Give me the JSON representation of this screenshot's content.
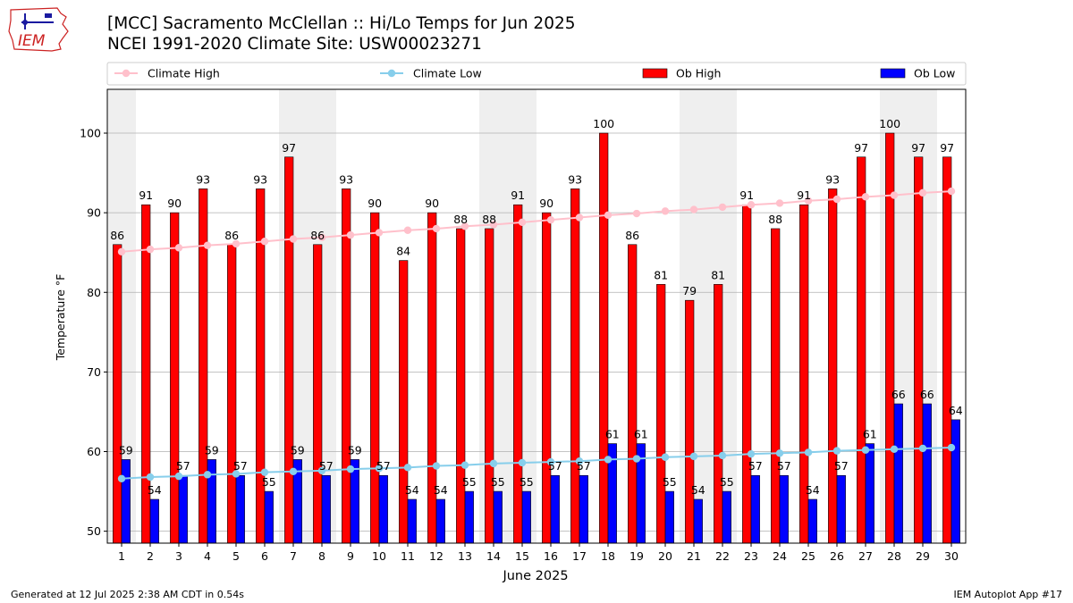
{
  "header": {
    "logo_text": "IEM",
    "title_line1": "[MCC] Sacramento McClellan :: Hi/Lo Temps for Jun 2025",
    "title_line2": "NCEI 1991-2020 Climate Site: USW00023271"
  },
  "footer": {
    "generated": "Generated at 12 Jul 2025 2:38 AM CDT in 0.54s",
    "app": "IEM Autoplot App #17"
  },
  "chart_data": {
    "type": "bar",
    "xlabel": "June 2025",
    "ylabel": "Temperature °F",
    "ylim": [
      48.5,
      105.5
    ],
    "xlim": [
      0.5,
      30.5
    ],
    "yticks": [
      50,
      60,
      70,
      80,
      90,
      100
    ],
    "grid": true,
    "legend_position": "top",
    "categories": [
      1,
      2,
      3,
      4,
      5,
      6,
      7,
      8,
      9,
      10,
      11,
      12,
      13,
      14,
      15,
      16,
      17,
      18,
      19,
      20,
      21,
      22,
      23,
      24,
      25,
      26,
      27,
      28,
      29,
      30
    ],
    "weekend_days": [
      1,
      7,
      8,
      14,
      15,
      21,
      22,
      28,
      29
    ],
    "series": [
      {
        "name": "Climate High",
        "kind": "line",
        "color": "#ffc0cb",
        "values": [
          85.1,
          85.4,
          85.6,
          85.9,
          86.1,
          86.4,
          86.7,
          86.9,
          87.2,
          87.5,
          87.8,
          88.0,
          88.3,
          88.5,
          88.8,
          89.1,
          89.4,
          89.7,
          89.9,
          90.2,
          90.4,
          90.7,
          91.0,
          91.2,
          91.5,
          91.7,
          92.0,
          92.2,
          92.5,
          92.7
        ]
      },
      {
        "name": "Climate Low",
        "kind": "line",
        "color": "#87ceeb",
        "values": [
          56.6,
          56.8,
          56.9,
          57.1,
          57.2,
          57.4,
          57.5,
          57.6,
          57.8,
          57.9,
          58.0,
          58.2,
          58.3,
          58.5,
          58.6,
          58.7,
          58.8,
          59.0,
          59.1,
          59.3,
          59.4,
          59.5,
          59.7,
          59.8,
          59.9,
          60.1,
          60.2,
          60.3,
          60.4,
          60.5
        ]
      },
      {
        "name": "Ob High",
        "kind": "bar",
        "color": "#ff0000",
        "values": [
          86,
          91,
          90,
          93,
          86,
          93,
          97,
          86,
          93,
          90,
          84,
          90,
          88,
          88,
          91,
          90,
          93,
          100,
          86,
          81,
          79,
          81,
          91,
          88,
          91,
          93,
          97,
          100,
          97,
          97
        ]
      },
      {
        "name": "Ob Low",
        "kind": "bar",
        "color": "#0000ff",
        "values": [
          59,
          54,
          57,
          59,
          57,
          55,
          59,
          57,
          59,
          57,
          54,
          54,
          55,
          55,
          55,
          57,
          57,
          61,
          61,
          55,
          54,
          55,
          57,
          57,
          54,
          57,
          61,
          66,
          66,
          64
        ]
      }
    ]
  }
}
